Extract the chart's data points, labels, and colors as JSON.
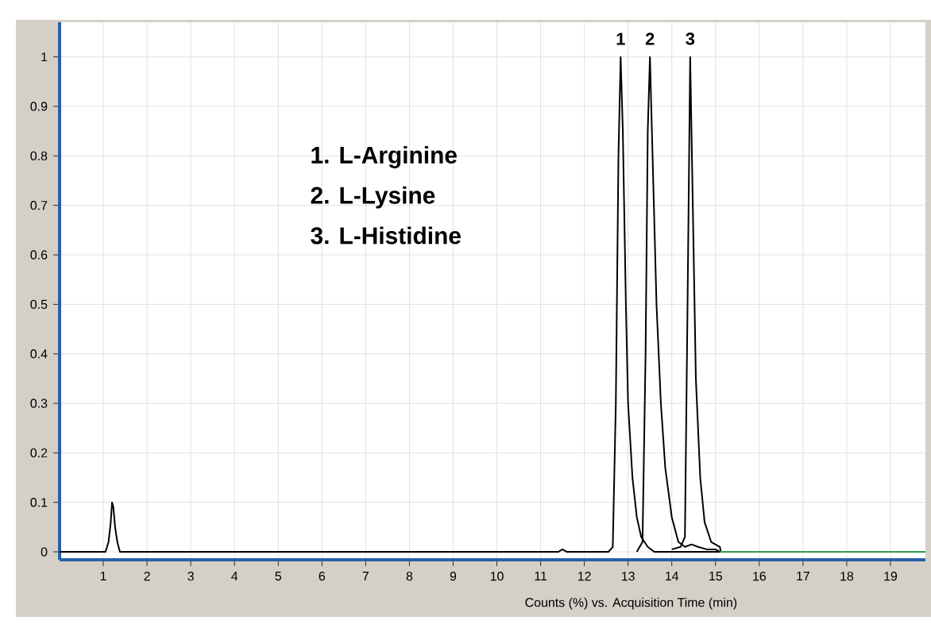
{
  "chart_data": {
    "type": "line",
    "xlabel": "Counts (%) vs. Acquisition Time (min)",
    "xlim": [
      0,
      19.8
    ],
    "ylim": [
      -0.016,
      1.07
    ],
    "xticks": [
      1,
      2,
      3,
      4,
      5,
      6,
      7,
      8,
      9,
      10,
      11,
      12,
      13,
      14,
      15,
      16,
      17,
      18,
      19
    ],
    "yticks": [
      0,
      0.1,
      0.2,
      0.3,
      0.4,
      0.5,
      0.6,
      0.7,
      0.8,
      0.9,
      1
    ],
    "grid": true,
    "marker": "none",
    "line_style": "solid",
    "series": [
      {
        "color": "#000000",
        "x": [
          0,
          1.05,
          1.12,
          1.17,
          1.2,
          1.23,
          1.27,
          1.32,
          1.38,
          1.45,
          11.4,
          11.5,
          11.6,
          12.55,
          12.65,
          12.72,
          12.78,
          12.83,
          12.88,
          12.95,
          13.0,
          13.1,
          13.2,
          13.3,
          13.45,
          13.6,
          15.1
        ],
        "values": [
          0,
          0,
          0.02,
          0.06,
          0.1,
          0.09,
          0.05,
          0.02,
          0,
          0,
          0,
          0.005,
          0,
          0,
          0.01,
          0.3,
          0.8,
          1.0,
          0.85,
          0.5,
          0.3,
          0.15,
          0.07,
          0.03,
          0.01,
          0,
          0
        ]
      },
      {
        "color": "#000000",
        "x": [
          13.2,
          13.33,
          13.4,
          13.45,
          13.5,
          13.56,
          13.65,
          13.75,
          13.85,
          14.0,
          14.15,
          14.3,
          14.45,
          14.6,
          14.8,
          15.0,
          15.1
        ],
        "values": [
          0,
          0.02,
          0.4,
          0.85,
          1.0,
          0.8,
          0.5,
          0.3,
          0.17,
          0.07,
          0.02,
          0.01,
          0.015,
          0.01,
          0.005,
          0.005,
          0
        ]
      },
      {
        "color": "#000000",
        "x": [
          14.0,
          14.2,
          14.3,
          14.36,
          14.42,
          14.48,
          14.55,
          14.65,
          14.75,
          14.9,
          15.1,
          15.12
        ],
        "values": [
          0.005,
          0.01,
          0.03,
          0.5,
          1.0,
          0.7,
          0.35,
          0.15,
          0.06,
          0.02,
          0.01,
          0
        ]
      },
      {
        "color": "#2e9e4a",
        "x": [
          15.1,
          19.8
        ],
        "values": [
          0,
          0
        ]
      }
    ],
    "annotations": [
      "1. L-Arginine",
      "2. L-Lysine",
      "3. L-Histidine",
      {
        "text": "1",
        "x": 12.83,
        "y": 1.0
      },
      {
        "text": "2",
        "x": 13.5,
        "y": 1.0
      },
      {
        "text": "3",
        "x": 14.42,
        "y": 1.0
      }
    ]
  }
}
